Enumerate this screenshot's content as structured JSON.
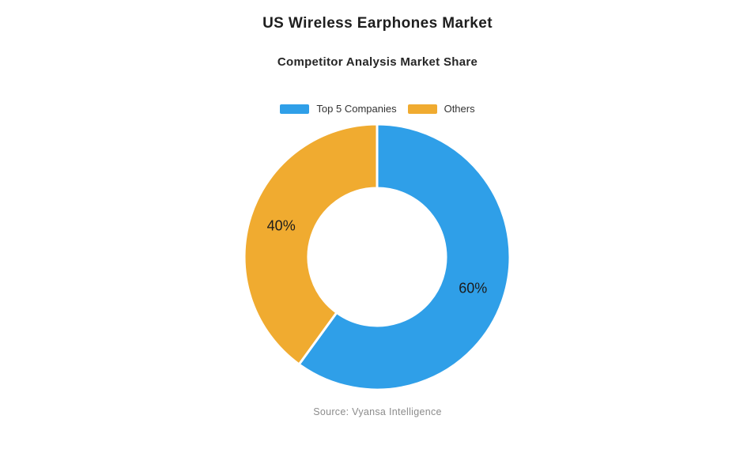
{
  "page": {
    "title": "US Wireless Earphones Market",
    "subtitle": "Competitor Analysis Market Share",
    "source": "Source: Vyansa Intelligence"
  },
  "chart_data": {
    "type": "pie",
    "variant": "donut",
    "title": "US Wireless Earphones Market",
    "subtitle": "Competitor Analysis Market Share",
    "legend_position": "top",
    "start_angle_deg": 0,
    "direction": "clockwise",
    "inner_radius_ratio": 0.52,
    "separator_color": "#ffffff",
    "label_color": "#1c1c1c",
    "series": [
      {
        "name": "Top 5 Companies",
        "value": 60,
        "label": "60%",
        "color": "#2f9fe8"
      },
      {
        "name": "Others",
        "value": 40,
        "label": "40%",
        "color": "#f0ab30"
      }
    ],
    "source": "Source: Vyansa Intelligence"
  }
}
